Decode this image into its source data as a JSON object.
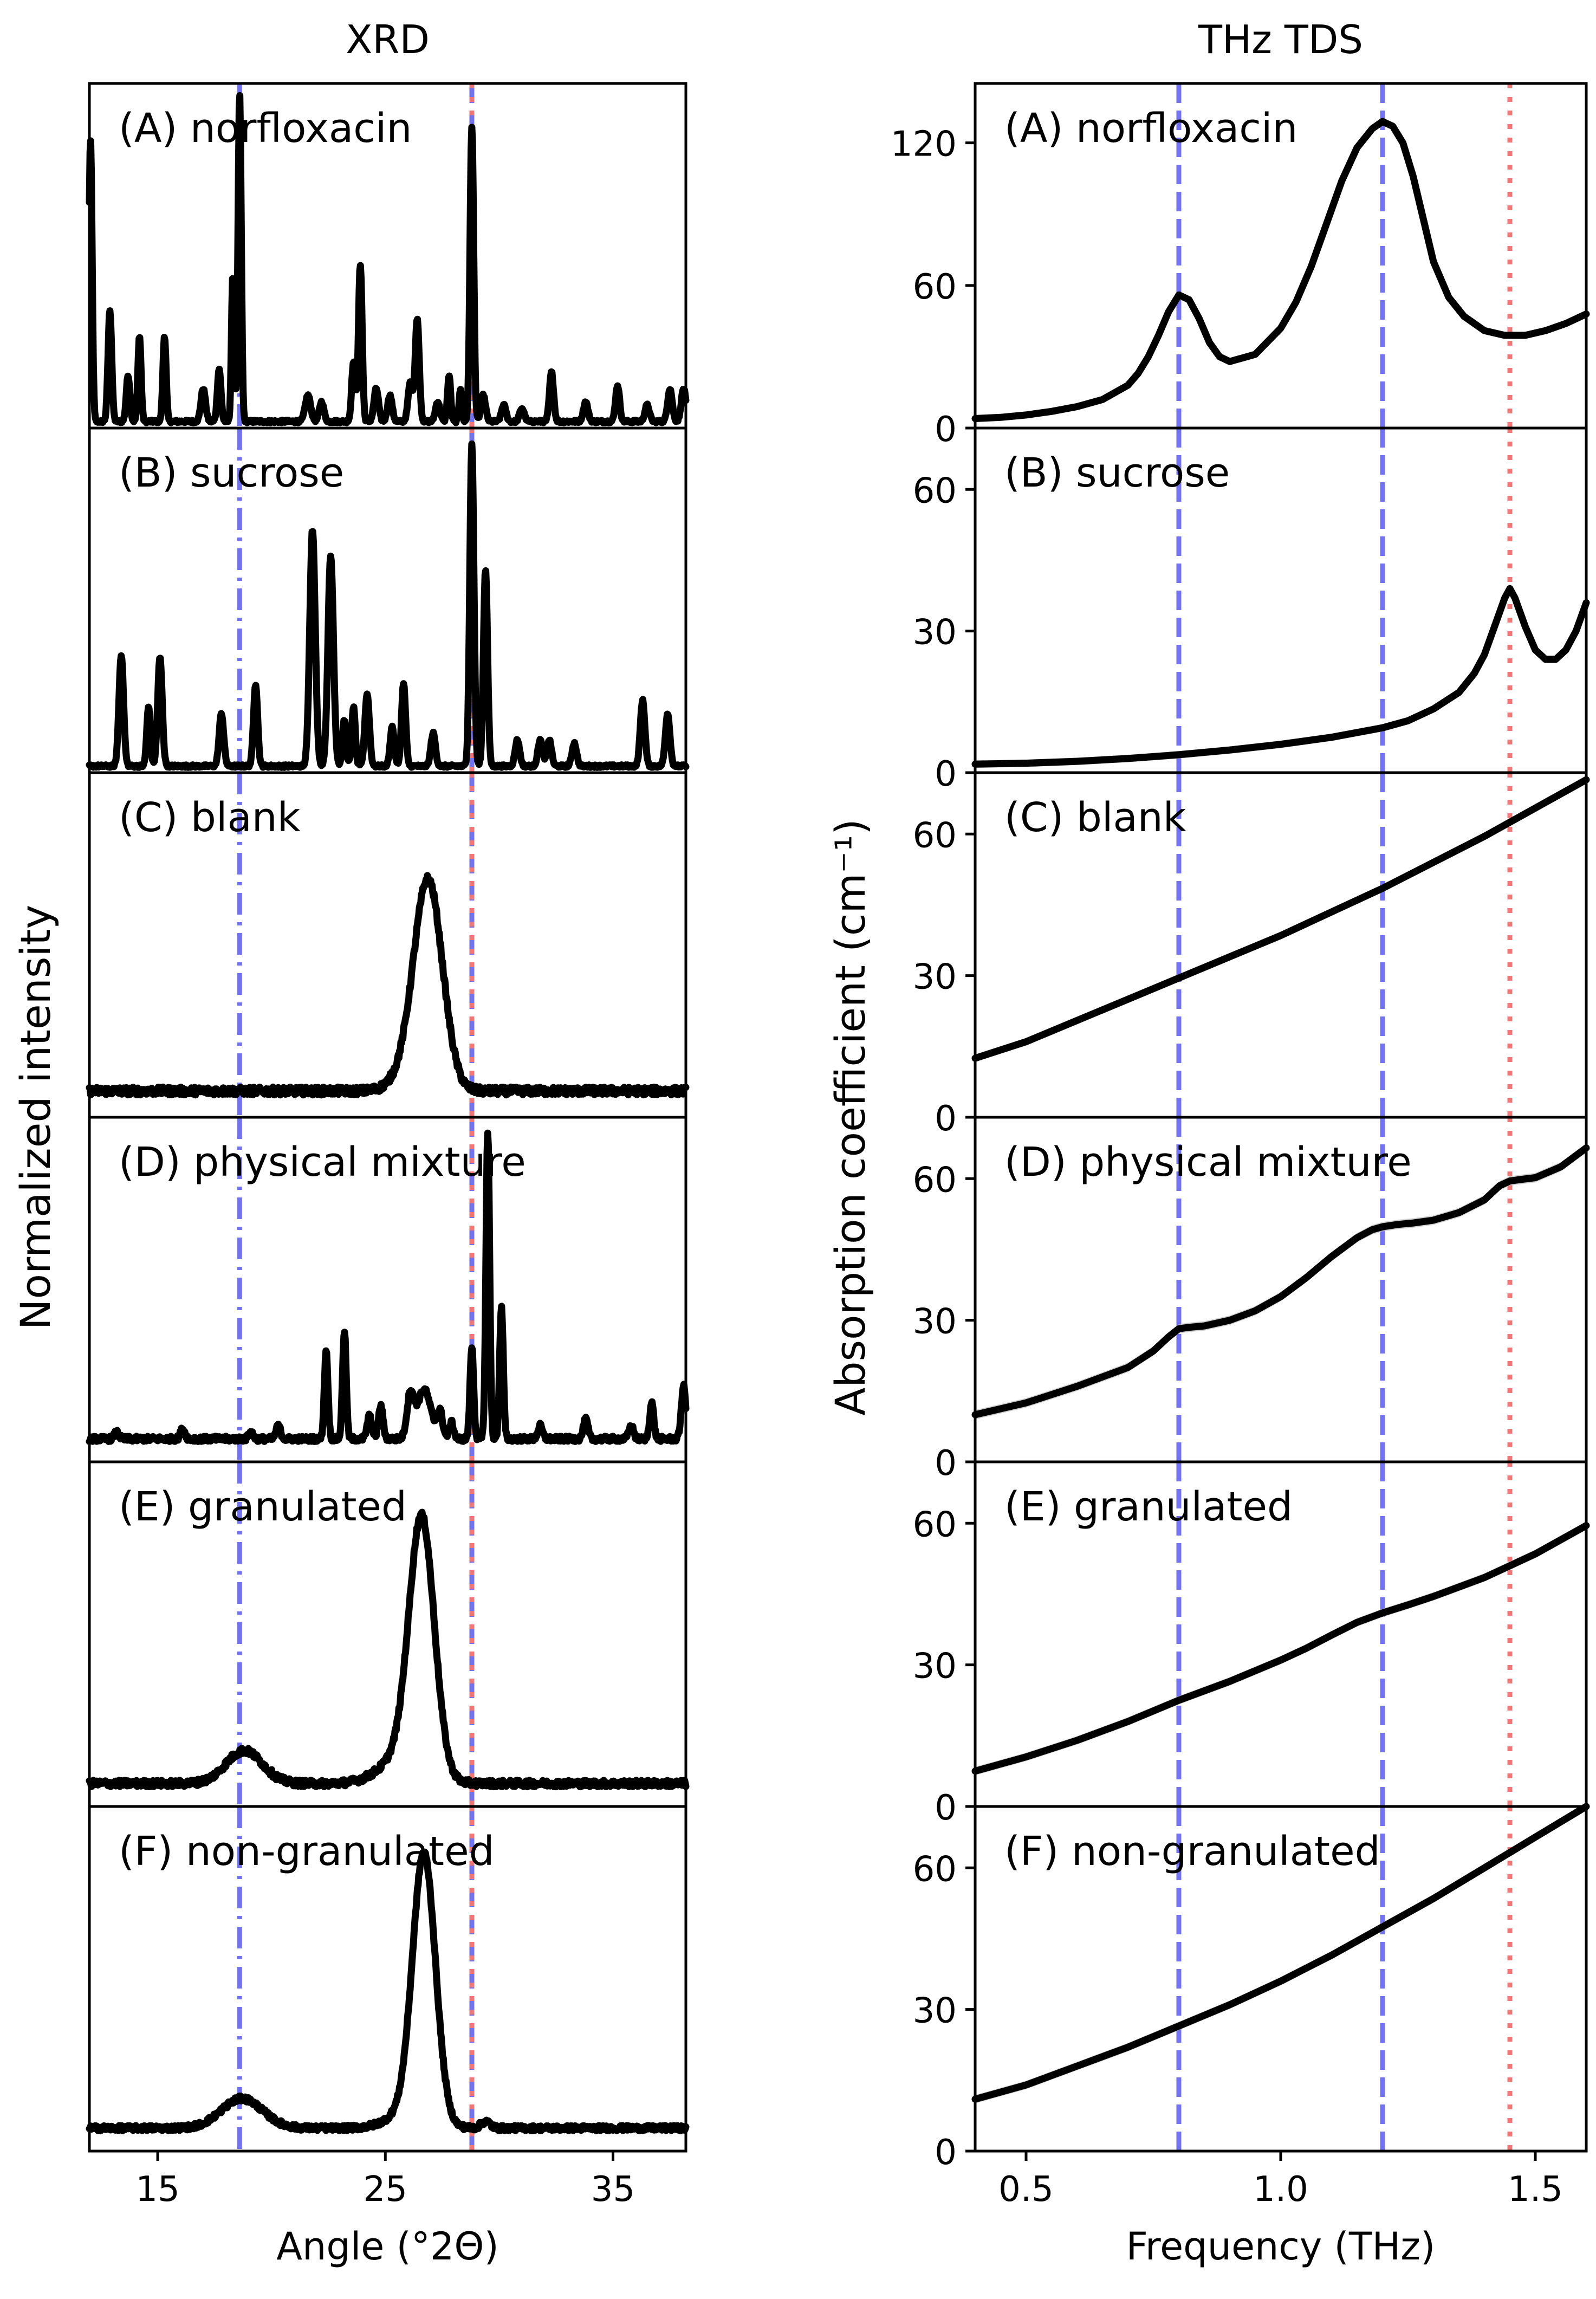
{
  "figure_title_left": "XRD",
  "figure_title_right": "THz TDS",
  "colors": {
    "curve": "#000000",
    "blue_line": "#7373ee",
    "red_line": "#f07878",
    "band": "#bdbdbd"
  },
  "chart_data": [
    {
      "type": "line",
      "title": "XRD",
      "xlabel": "Angle (°2Θ)",
      "ylabel": "Normalized intensity",
      "xlim": [
        12,
        38.2
      ],
      "xticks": [
        15,
        25,
        35
      ],
      "yticks": [],
      "vlines": [
        {
          "x": 18.6,
          "style": "dashdot",
          "color": "blue"
        },
        {
          "x": 28.8,
          "style": "dashed",
          "color": "blue"
        },
        {
          "x": 28.8,
          "style": "dotted",
          "color": "red"
        }
      ],
      "panels": [
        {
          "label": "(A) norfloxacin",
          "ylim": [
            0,
            1.05
          ],
          "noise": 0.004,
          "baseline": 0.02,
          "peaks": [
            [
              12.05,
              0.86,
              0.07
            ],
            [
              12.9,
              0.34,
              0.08
            ],
            [
              13.7,
              0.14,
              0.08
            ],
            [
              14.2,
              0.26,
              0.07
            ],
            [
              15.3,
              0.26,
              0.07
            ],
            [
              17.0,
              0.1,
              0.1
            ],
            [
              17.7,
              0.16,
              0.08
            ],
            [
              18.3,
              0.44,
              0.06
            ],
            [
              18.6,
              1.0,
              0.07
            ],
            [
              21.6,
              0.08,
              0.12
            ],
            [
              22.2,
              0.06,
              0.1
            ],
            [
              23.6,
              0.18,
              0.08
            ],
            [
              23.9,
              0.48,
              0.08
            ],
            [
              24.6,
              0.1,
              0.1
            ],
            [
              25.2,
              0.08,
              0.1
            ],
            [
              26.1,
              0.12,
              0.1
            ],
            [
              26.4,
              0.31,
              0.09
            ],
            [
              27.3,
              0.06,
              0.1
            ],
            [
              27.8,
              0.14,
              0.07
            ],
            [
              28.3,
              0.1,
              0.06
            ],
            [
              28.8,
              0.9,
              0.08
            ],
            [
              29.3,
              0.08,
              0.1
            ],
            [
              30.2,
              0.05,
              0.1
            ],
            [
              31.0,
              0.04,
              0.1
            ],
            [
              32.3,
              0.15,
              0.09
            ],
            [
              33.8,
              0.06,
              0.1
            ],
            [
              35.2,
              0.11,
              0.09
            ],
            [
              36.5,
              0.05,
              0.1
            ],
            [
              37.5,
              0.1,
              0.1
            ],
            [
              38.1,
              0.1,
              0.1
            ]
          ]
        },
        {
          "label": "(B) sucrose",
          "ylim": [
            0,
            1.05
          ],
          "noise": 0.004,
          "baseline": 0.02,
          "peaks": [
            [
              13.4,
              0.34,
              0.1
            ],
            [
              14.6,
              0.18,
              0.08
            ],
            [
              15.1,
              0.33,
              0.1
            ],
            [
              17.8,
              0.16,
              0.1
            ],
            [
              19.3,
              0.25,
              0.09
            ],
            [
              21.8,
              0.72,
              0.12
            ],
            [
              22.6,
              0.64,
              0.12
            ],
            [
              23.2,
              0.14,
              0.08
            ],
            [
              23.6,
              0.18,
              0.08
            ],
            [
              24.2,
              0.22,
              0.1
            ],
            [
              25.3,
              0.12,
              0.09
            ],
            [
              25.8,
              0.25,
              0.09
            ],
            [
              27.1,
              0.1,
              0.1
            ],
            [
              28.8,
              0.98,
              0.09
            ],
            [
              29.4,
              0.6,
              0.09
            ],
            [
              30.8,
              0.08,
              0.1
            ],
            [
              31.8,
              0.08,
              0.1
            ],
            [
              32.2,
              0.08,
              0.1
            ],
            [
              33.3,
              0.07,
              0.1
            ],
            [
              36.3,
              0.2,
              0.1
            ],
            [
              37.4,
              0.16,
              0.1
            ]
          ]
        },
        {
          "label": "(C) blank",
          "ylim": [
            0,
            1.05
          ],
          "noise": 0.012,
          "baseline": 0.08,
          "peaks": [
            [
              26.4,
              0.08,
              0.8
            ],
            [
              26.9,
              0.58,
              0.62
            ]
          ]
        },
        {
          "label": "(D) physical mixture",
          "ylim": [
            0,
            1.05
          ],
          "noise": 0.008,
          "baseline": 0.07,
          "peaks": [
            [
              13.2,
              0.02,
              0.1
            ],
            [
              16.1,
              0.03,
              0.1
            ],
            [
              19.1,
              0.02,
              0.1
            ],
            [
              20.3,
              0.04,
              0.1
            ],
            [
              22.4,
              0.27,
              0.08
            ],
            [
              23.2,
              0.33,
              0.08
            ],
            [
              24.3,
              0.07,
              0.1
            ],
            [
              24.8,
              0.1,
              0.1
            ],
            [
              26.1,
              0.13,
              0.15
            ],
            [
              26.7,
              0.15,
              0.3
            ],
            [
              27.4,
              0.08,
              0.12
            ],
            [
              27.9,
              0.05,
              0.1
            ],
            [
              28.8,
              0.28,
              0.08
            ],
            [
              29.5,
              0.94,
              0.08
            ],
            [
              30.1,
              0.4,
              0.08
            ],
            [
              31.8,
              0.04,
              0.1
            ],
            [
              33.8,
              0.06,
              0.1
            ],
            [
              35.8,
              0.04,
              0.1
            ],
            [
              36.7,
              0.11,
              0.09
            ],
            [
              38.1,
              0.16,
              0.1
            ]
          ]
        },
        {
          "label": "(E) granulated",
          "ylim": [
            0,
            1.05
          ],
          "noise": 0.01,
          "baseline": 0.07,
          "peaks": [
            [
              18.8,
              0.1,
              0.8
            ],
            [
              26.6,
              0.76,
              0.55
            ],
            [
              25.8,
              0.08,
              1.0
            ]
          ]
        },
        {
          "label": "(F) non-granulated",
          "ylim": [
            0,
            1.05
          ],
          "noise": 0.008,
          "baseline": 0.07,
          "peaks": [
            [
              18.7,
              0.09,
              0.9
            ],
            [
              26.7,
              0.8,
              0.5
            ],
            [
              26.1,
              0.05,
              0.9
            ],
            [
              29.4,
              0.02,
              0.2
            ]
          ]
        }
      ]
    },
    {
      "type": "line",
      "title": "THz TDS",
      "xlabel": "Frequency (THz)",
      "ylabel": "Absorption coefficient (cm⁻¹)",
      "xlim": [
        0.4,
        1.6
      ],
      "xticks": [
        0.5,
        1.0,
        1.5
      ],
      "xtick_labels": [
        "0.5",
        "1.0",
        "1.5"
      ],
      "vlines": [
        {
          "x": 0.8,
          "style": "dashed",
          "color": "blue"
        },
        {
          "x": 1.2,
          "style": "dashed",
          "color": "blue"
        },
        {
          "x": 1.45,
          "style": "dotted",
          "color": "red"
        }
      ],
      "panels": [
        {
          "label": "(A) norfloxacin",
          "ylim": [
            0,
            145
          ],
          "yticks": [
            0,
            60,
            120
          ],
          "x": [
            0.4,
            0.45,
            0.5,
            0.55,
            0.6,
            0.65,
            0.7,
            0.72,
            0.74,
            0.76,
            0.78,
            0.8,
            0.82,
            0.84,
            0.86,
            0.88,
            0.9,
            0.95,
            1.0,
            1.03,
            1.06,
            1.09,
            1.12,
            1.15,
            1.18,
            1.2,
            1.22,
            1.24,
            1.26,
            1.28,
            1.3,
            1.33,
            1.36,
            1.4,
            1.44,
            1.48,
            1.52,
            1.56,
            1.6
          ],
          "y": [
            4,
            4.5,
            5.5,
            7,
            9,
            12,
            18,
            23,
            30,
            39,
            49,
            56,
            54,
            46,
            36,
            30,
            28,
            31,
            42,
            53,
            68,
            86,
            104,
            118,
            126,
            129,
            127,
            120,
            106,
            88,
            70,
            55,
            47,
            41,
            39,
            39,
            41,
            44,
            48
          ],
          "band": 1.5
        },
        {
          "label": "(B) sucrose",
          "ylim": [
            0,
            73
          ],
          "yticks": [
            0,
            30,
            60
          ],
          "x": [
            0.4,
            0.5,
            0.6,
            0.7,
            0.8,
            0.9,
            1.0,
            1.1,
            1.2,
            1.25,
            1.3,
            1.35,
            1.38,
            1.4,
            1.42,
            1.44,
            1.45,
            1.46,
            1.48,
            1.5,
            1.52,
            1.54,
            1.56,
            1.58,
            1.6
          ],
          "y": [
            1.8,
            2,
            2.4,
            3,
            3.8,
            4.8,
            6,
            7.5,
            9.5,
            11,
            13.5,
            17,
            21,
            25,
            31,
            37,
            39,
            37,
            31,
            26,
            24,
            24,
            26,
            30,
            36
          ],
          "band": 0.8
        },
        {
          "label": "(C) blank",
          "ylim": [
            0,
            73
          ],
          "yticks": [
            0,
            30,
            60
          ],
          "x": [
            0.4,
            0.5,
            0.6,
            0.7,
            0.8,
            0.9,
            1.0,
            1.1,
            1.2,
            1.3,
            1.4,
            1.5,
            1.6
          ],
          "y": [
            12.5,
            16,
            20.5,
            25,
            29.5,
            34,
            38.5,
            43.5,
            48.5,
            54,
            59.5,
            65.5,
            71.5
          ],
          "band": 0.8
        },
        {
          "label": "(D) physical mixture",
          "ylim": [
            0,
            73
          ],
          "yticks": [
            0,
            30,
            60
          ],
          "x": [
            0.4,
            0.5,
            0.6,
            0.7,
            0.75,
            0.78,
            0.8,
            0.82,
            0.85,
            0.9,
            0.95,
            1.0,
            1.05,
            1.1,
            1.15,
            1.18,
            1.2,
            1.23,
            1.26,
            1.3,
            1.35,
            1.4,
            1.43,
            1.45,
            1.47,
            1.5,
            1.55,
            1.6
          ],
          "y": [
            10,
            12.5,
            16,
            20,
            23.5,
            26.5,
            28.2,
            28.5,
            28.8,
            30,
            32,
            35,
            39,
            43.5,
            47.5,
            49.2,
            49.8,
            50.3,
            50.6,
            51.2,
            52.8,
            55.5,
            58.5,
            59.5,
            59.8,
            60.2,
            62.5,
            66.5
          ],
          "band": 1.0
        },
        {
          "label": "(E) granulated",
          "ylim": [
            0,
            73
          ],
          "yticks": [
            0,
            30,
            60
          ],
          "x": [
            0.4,
            0.5,
            0.6,
            0.7,
            0.8,
            0.9,
            1.0,
            1.05,
            1.1,
            1.15,
            1.2,
            1.25,
            1.3,
            1.4,
            1.5,
            1.6
          ],
          "y": [
            7.5,
            10.5,
            14,
            18,
            22.5,
            26.5,
            31,
            33.5,
            36.3,
            39,
            41,
            42.7,
            44.5,
            48.5,
            53.5,
            59.5
          ],
          "band": 0.9
        },
        {
          "label": "(F) non-granulated",
          "ylim": [
            0,
            73
          ],
          "yticks": [
            0,
            30,
            60
          ],
          "x": [
            0.4,
            0.5,
            0.6,
            0.7,
            0.8,
            0.9,
            1.0,
            1.1,
            1.2,
            1.3,
            1.4,
            1.5,
            1.6
          ],
          "y": [
            11,
            14,
            18,
            22,
            26.5,
            31,
            36,
            41.5,
            47.5,
            53.5,
            60,
            66.5,
            73
          ],
          "band": 0.9
        }
      ]
    }
  ]
}
